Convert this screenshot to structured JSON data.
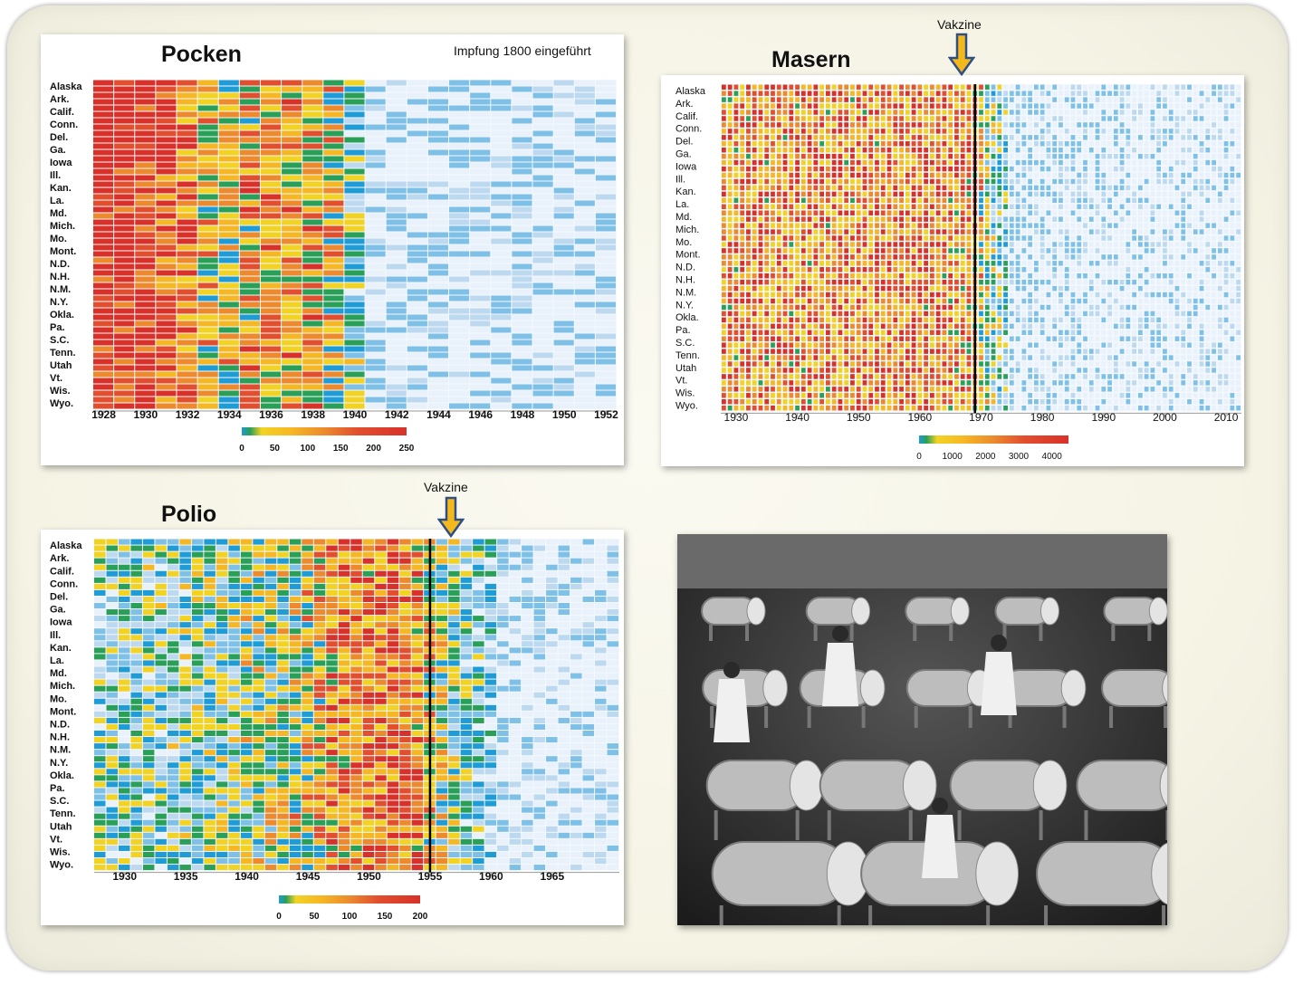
{
  "chart_data": [
    {
      "type": "heatmap",
      "title": "Pocken",
      "subtitle": "Impfung 1800 eingeführt",
      "states": [
        "Alaska",
        "Ark.",
        "Calif.",
        "Conn.",
        "Del.",
        "Ga.",
        "Iowa",
        "Ill.",
        "Kan.",
        "La.",
        "Md.",
        "Mich.",
        "Mo.",
        "Mont.",
        "N.D.",
        "N.H.",
        "N.M.",
        "N.Y.",
        "Okla.",
        "Pa.",
        "S.C.",
        "Tenn.",
        "Utah",
        "Vt.",
        "Wis.",
        "Wyo."
      ],
      "x_ticks": [
        "1928",
        "1930",
        "1932",
        "1934",
        "1936",
        "1938",
        "1940",
        "1942",
        "1944",
        "1946",
        "1948",
        "1950",
        "1952"
      ],
      "x_range": [
        1928,
        1953
      ],
      "rows_per_state": 2,
      "legend_ticks": [
        "0",
        "50",
        "100",
        "150",
        "200",
        "250"
      ],
      "legend_max": 250,
      "colors": [
        "#e9f2fb",
        "#bcd9ef",
        "#7fc1e6",
        "#1f9bd6",
        "#2a9f57",
        "#f2d323",
        "#f6b724",
        "#ec8a2d",
        "#e14f2e",
        "#d8312a"
      ],
      "intensity_profile": [
        [
          1928,
          1.0
        ],
        [
          1930,
          1.0
        ],
        [
          1932,
          0.85
        ],
        [
          1934,
          0.5
        ],
        [
          1936,
          0.7
        ],
        [
          1938,
          0.7
        ],
        [
          1940,
          0.55
        ],
        [
          1941,
          0.15
        ],
        [
          1946,
          0.08
        ],
        [
          1953,
          0.05
        ]
      ]
    },
    {
      "type": "heatmap",
      "title": "Masern",
      "states": [
        "Alaska",
        "Ark.",
        "Calif.",
        "Conn.",
        "Del.",
        "Ga.",
        "Iowa",
        "Ill.",
        "Kan.",
        "La.",
        "Md.",
        "Mich.",
        "Mo.",
        "Mont.",
        "N.D.",
        "N.H.",
        "N.M.",
        "N.Y.",
        "Okla.",
        "Pa.",
        "S.C.",
        "Tenn.",
        "Utah",
        "Vt.",
        "Wis.",
        "Wyo."
      ],
      "x_ticks": [
        "1930",
        "1940",
        "1950",
        "1960",
        "1970",
        "1980",
        "1990",
        "2000",
        "2010"
      ],
      "x_range": [
        1928,
        2013
      ],
      "rows_per_state": 2,
      "vaccine_year": 1969,
      "vaccine_label": "Vakzine",
      "legend_ticks": [
        "0",
        "1000",
        "2000",
        "3000",
        "4000"
      ],
      "legend_max": 4500,
      "colors": [
        "#e9f2fb",
        "#bcd9ef",
        "#7fc1e6",
        "#1f9bd6",
        "#2a9f57",
        "#f2d323",
        "#f6b724",
        "#ec8a2d",
        "#e14f2e",
        "#d8312a"
      ],
      "intensity_profile": [
        [
          1928,
          0.75
        ],
        [
          1960,
          0.78
        ],
        [
          1969,
          0.72
        ],
        [
          1972,
          0.45
        ],
        [
          1976,
          0.15
        ],
        [
          1985,
          0.08
        ],
        [
          1995,
          0.04
        ],
        [
          2013,
          0.03
        ]
      ]
    },
    {
      "type": "heatmap",
      "title": "Polio",
      "states": [
        "Alaska",
        "Ark.",
        "Calif.",
        "Conn.",
        "Del.",
        "Ga.",
        "Iowa",
        "Ill.",
        "Kan.",
        "La.",
        "Md.",
        "Mich.",
        "Mo.",
        "Mont.",
        "N.D.",
        "N.H.",
        "N.M.",
        "N.Y.",
        "Okla.",
        "Pa.",
        "S.C.",
        "Tenn.",
        "Utah",
        "Vt.",
        "Wis.",
        "Wyo."
      ],
      "x_ticks": [
        "1930",
        "1935",
        "1940",
        "1945",
        "1950",
        "1955",
        "1960",
        "1965"
      ],
      "x_range": [
        1928,
        1971
      ],
      "rows_per_state": 2,
      "vaccine_year": 1955,
      "vaccine_label": "Vakzine",
      "legend_ticks": [
        "0",
        "50",
        "100",
        "150",
        "200"
      ],
      "legend_max": 200,
      "colors": [
        "#e9f2fb",
        "#bcd9ef",
        "#7fc1e6",
        "#1f9bd6",
        "#2a9f57",
        "#f2d323",
        "#f6b724",
        "#ec8a2d",
        "#e14f2e",
        "#d8312a"
      ],
      "intensity_profile": [
        [
          1928,
          0.3
        ],
        [
          1935,
          0.35
        ],
        [
          1940,
          0.45
        ],
        [
          1945,
          0.55
        ],
        [
          1949,
          0.75
        ],
        [
          1953,
          0.8
        ],
        [
          1955,
          0.7
        ],
        [
          1957,
          0.4
        ],
        [
          1960,
          0.25
        ],
        [
          1962,
          0.08
        ],
        [
          1971,
          0.03
        ]
      ]
    }
  ],
  "photo": {
    "description_icon": "iron-lung-ward-photo-icon"
  }
}
